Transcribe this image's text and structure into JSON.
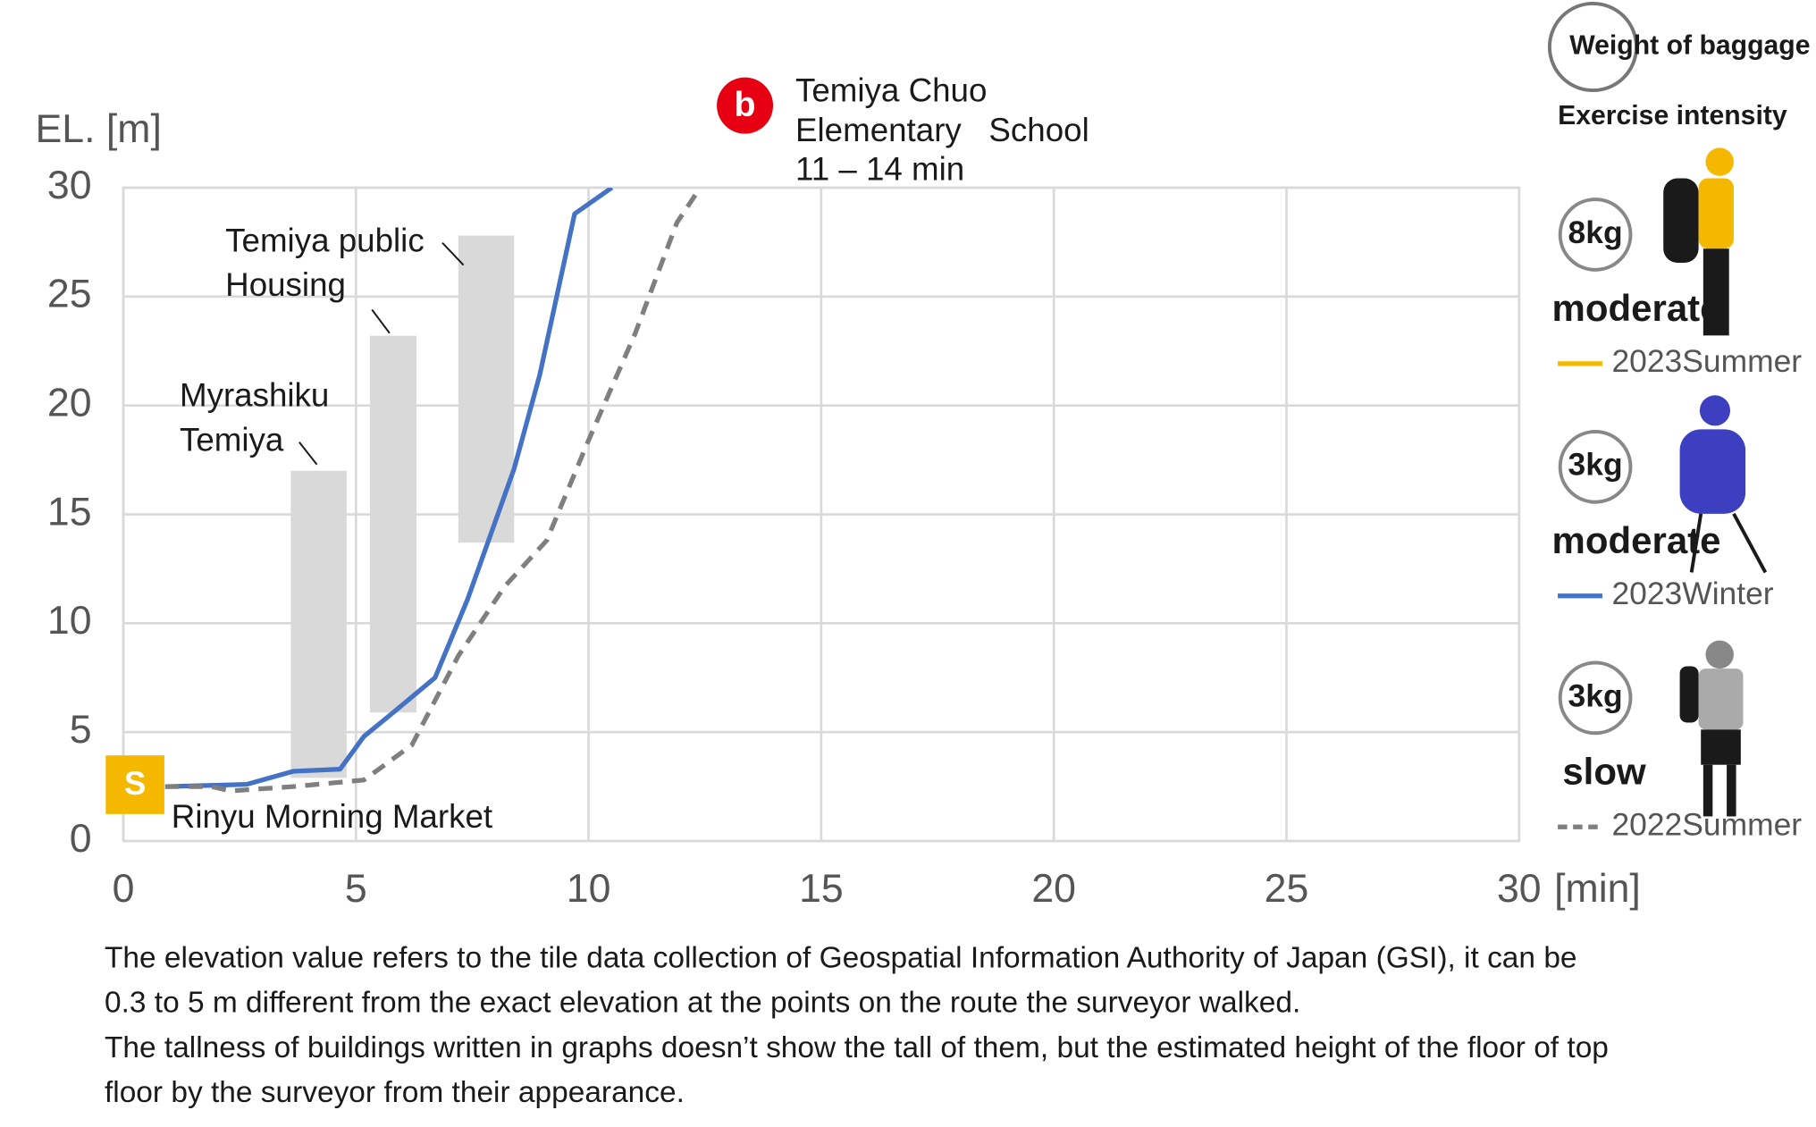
{
  "chart_data": {
    "type": "line",
    "y_label": "EL. [m]",
    "x_label": "[min]",
    "xlim": [
      0,
      30
    ],
    "xticks": [
      0,
      5,
      10,
      15,
      20,
      25,
      30
    ],
    "ylim": [
      0,
      30
    ],
    "yticks": [
      0,
      5,
      10,
      15,
      20,
      25,
      30
    ],
    "grid": true,
    "series": [
      {
        "name": "2023Summer",
        "color": "#f5b800",
        "dash": false,
        "weight": "8kg",
        "intensity": "moderate",
        "x": [],
        "values": []
      },
      {
        "name": "2023Winter",
        "color": "#4472c4",
        "dash": false,
        "weight": "3kg",
        "intensity": "moderate",
        "x": [
          0.9,
          2.65,
          3.65,
          4.66,
          5.17,
          5.8,
          6.7,
          7.4,
          8.4,
          8.95,
          9.7,
          10.5
        ],
        "values": [
          2.5,
          2.6,
          3.2,
          3.3,
          4.8,
          5.9,
          7.5,
          11.1,
          17.1,
          21.4,
          28.8,
          30
        ]
      },
      {
        "name": "2022Summer",
        "color": "#7f7f7f",
        "dash": true,
        "weight": "3kg",
        "intensity": "slow",
        "x": [
          0.9,
          1.9,
          2.3,
          3.65,
          5.17,
          6.2,
          7.2,
          8.2,
          9.1,
          10,
          11,
          11.9,
          12.4
        ],
        "values": [
          2.5,
          2.5,
          2.3,
          2.5,
          2.8,
          4.4,
          8.5,
          11.7,
          13.8,
          18.4,
          23.3,
          28.4,
          30
        ]
      }
    ],
    "buildings": [
      {
        "x": [
          3.6,
          4.8
        ],
        "y": [
          2.9,
          17
        ]
      },
      {
        "x": [
          5.3,
          6.3
        ],
        "y": [
          5.9,
          23.2
        ]
      },
      {
        "x": [
          7.2,
          8.4
        ],
        "y": [
          13.7,
          27.8
        ]
      }
    ],
    "legend_title": "Weight of baggage",
    "legend_subtitle": "Exercise intensity",
    "annotations": {
      "goal_marker": "b",
      "goal_line1": "Temiya Chuo",
      "goal_line2": "Elementary   School",
      "goal_time": "11 – 14 min",
      "start_marker": "S",
      "start_label": "Rinyu Morning Market",
      "building1_line1": "Myrashiku",
      "building1_line2": "Temiya",
      "building2_line1": "Temiya public",
      "building2_line2": "Housing"
    },
    "notes": [
      "The elevation value refers to the tile data collection of Geospatial Information Authority of Japan (GSI), it can be",
      "0.3 to 5 m different from the exact elevation at the points on the route the surveyor walked.",
      "The tallness of buildings written in graphs doesn’t show the tall of them, but the estimated height of the floor of top",
      "floor by the surveyor from their appearance."
    ]
  }
}
